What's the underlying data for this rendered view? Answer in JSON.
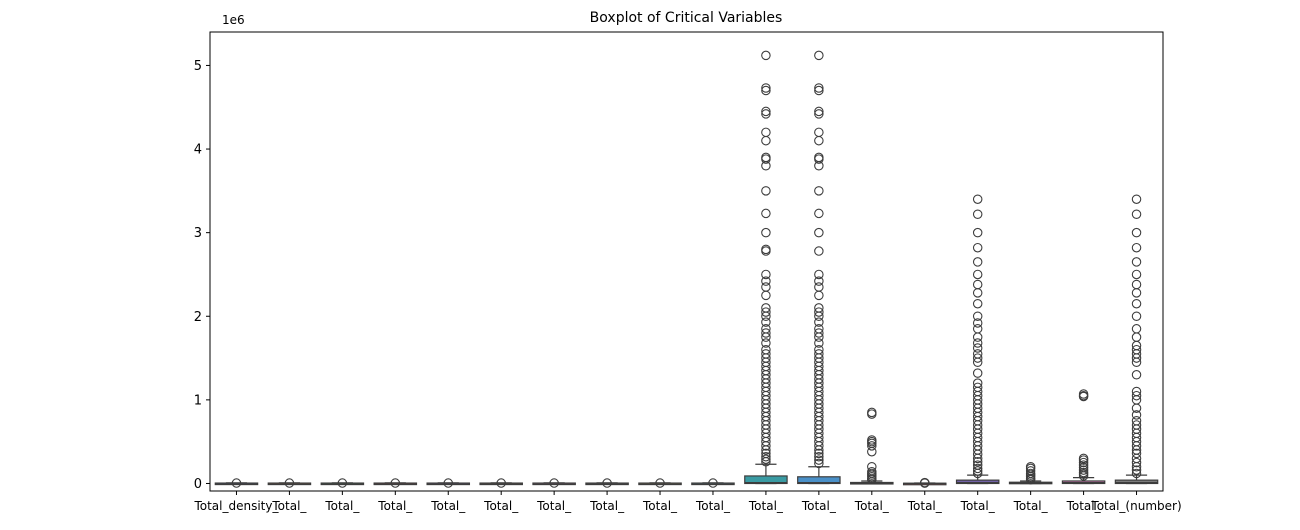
{
  "chart_data": {
    "type": "box",
    "title": "Boxplot of Critical Variables",
    "xlabel": "",
    "ylabel": "",
    "y_offset_label": "1e6",
    "ylim": [
      -0.09,
      5.4
    ],
    "y_ticks": [
      0,
      1,
      2,
      3,
      4,
      5
    ],
    "y_tick_labels": [
      "0",
      "1",
      "2",
      "3",
      "4",
      "5"
    ],
    "x_tick_labels": [
      "Total_density_",
      "Total_",
      "Total_",
      "Total_",
      "Total_",
      "Total_",
      "Total_",
      "Total_",
      "Total_",
      "Total_",
      "Total_",
      "Total_",
      "Total_",
      "Total_",
      "Total_",
      "Total_",
      "Total_",
      "Total_(number)"
    ],
    "boxes": [
      {
        "q1": 0,
        "median": 0.002,
        "q3": 0.005,
        "whisker_low": 0,
        "whisker_high": 0.008,
        "outliers": [
          0.005
        ]
      },
      {
        "q1": 0,
        "median": 0.002,
        "q3": 0.005,
        "whisker_low": 0,
        "whisker_high": 0.008,
        "outliers": [
          0.005
        ]
      },
      {
        "q1": 0,
        "median": 0.002,
        "q3": 0.005,
        "whisker_low": 0,
        "whisker_high": 0.008,
        "outliers": [
          0.005
        ]
      },
      {
        "q1": 0,
        "median": 0.002,
        "q3": 0.005,
        "whisker_low": 0,
        "whisker_high": 0.008,
        "outliers": [
          0.005
        ]
      },
      {
        "q1": 0,
        "median": 0.002,
        "q3": 0.005,
        "whisker_low": 0,
        "whisker_high": 0.008,
        "outliers": [
          0.005
        ]
      },
      {
        "q1": 0,
        "median": 0.002,
        "q3": 0.005,
        "whisker_low": 0,
        "whisker_high": 0.008,
        "outliers": [
          0.005
        ]
      },
      {
        "q1": 0,
        "median": 0.002,
        "q3": 0.005,
        "whisker_low": 0,
        "whisker_high": 0.008,
        "outliers": [
          0.005
        ]
      },
      {
        "q1": 0,
        "median": 0.002,
        "q3": 0.005,
        "whisker_low": 0,
        "whisker_high": 0.008,
        "outliers": [
          0.005
        ]
      },
      {
        "q1": 0,
        "median": 0.002,
        "q3": 0.005,
        "whisker_low": 0,
        "whisker_high": 0.008,
        "outliers": [
          0.005
        ]
      },
      {
        "q1": 0,
        "median": 0.002,
        "q3": 0.005,
        "whisker_low": 0,
        "whisker_high": 0.008,
        "outliers": [
          0.005
        ]
      },
      {
        "q1": 0,
        "median": 0.01,
        "q3": 0.09,
        "whisker_low": 0,
        "whisker_high": 0.23,
        "outliers": [
          5.12,
          4.73,
          4.7,
          4.45,
          4.42,
          4.2,
          4.1,
          3.9,
          3.88,
          3.8,
          3.5,
          3.23,
          3.0,
          2.8,
          2.78,
          2.5,
          2.42,
          2.35,
          2.25,
          2.1,
          2.05,
          2.0,
          1.93,
          1.85,
          1.8,
          1.75,
          1.68,
          1.6,
          1.55,
          1.5,
          1.45,
          1.4,
          1.35,
          1.3,
          1.25,
          1.2,
          1.15,
          1.1,
          1.05,
          1.0,
          0.95,
          0.9,
          0.85,
          0.8,
          0.75,
          0.7,
          0.65,
          0.6,
          0.55,
          0.5,
          0.45,
          0.4,
          0.36,
          0.32,
          0.29,
          0.26
        ]
      },
      {
        "q1": 0,
        "median": 0.01,
        "q3": 0.08,
        "whisker_low": 0,
        "whisker_high": 0.2,
        "outliers": [
          5.12,
          4.73,
          4.7,
          4.45,
          4.42,
          4.2,
          4.1,
          3.9,
          3.88,
          3.8,
          3.5,
          3.23,
          3.0,
          2.78,
          2.5,
          2.42,
          2.35,
          2.25,
          2.1,
          2.05,
          2.0,
          1.93,
          1.85,
          1.8,
          1.75,
          1.68,
          1.6,
          1.55,
          1.5,
          1.45,
          1.4,
          1.35,
          1.3,
          1.25,
          1.2,
          1.15,
          1.1,
          1.05,
          1.0,
          0.95,
          0.9,
          0.85,
          0.8,
          0.75,
          0.7,
          0.65,
          0.6,
          0.55,
          0.5,
          0.45,
          0.4,
          0.36,
          0.32,
          0.28,
          0.24
        ]
      },
      {
        "q1": 0,
        "median": 0.004,
        "q3": 0.012,
        "whisker_low": 0,
        "whisker_high": 0.03,
        "outliers": [
          0.85,
          0.83,
          0.52,
          0.5,
          0.48,
          0.45,
          0.38,
          0.2,
          0.14,
          0.12,
          0.1,
          0.08,
          0.06,
          0.045
        ]
      },
      {
        "q1": 0,
        "median": 0.001,
        "q3": 0.003,
        "whisker_low": 0,
        "whisker_high": 0.006,
        "outliers": [
          0.01,
          0.004
        ]
      },
      {
        "q1": 0,
        "median": 0.012,
        "q3": 0.04,
        "whisker_low": 0,
        "whisker_high": 0.1,
        "outliers": [
          3.4,
          3.22,
          3.0,
          2.82,
          2.65,
          2.5,
          2.38,
          2.28,
          2.15,
          2.0,
          1.92,
          1.85,
          1.75,
          1.68,
          1.62,
          1.55,
          1.5,
          1.45,
          1.32,
          1.2,
          1.15,
          1.1,
          1.05,
          1.0,
          0.95,
          0.9,
          0.85,
          0.8,
          0.75,
          0.7,
          0.65,
          0.6,
          0.55,
          0.5,
          0.45,
          0.4,
          0.35,
          0.3,
          0.26,
          0.22,
          0.18,
          0.15,
          0.12
        ]
      },
      {
        "q1": 0,
        "median": 0.004,
        "q3": 0.015,
        "whisker_low": 0,
        "whisker_high": 0.03,
        "outliers": [
          0.2,
          0.18,
          0.15,
          0.12,
          0.1,
          0.08,
          0.06,
          0.045
        ]
      },
      {
        "q1": 0,
        "median": 0.01,
        "q3": 0.03,
        "whisker_low": 0,
        "whisker_high": 0.07,
        "outliers": [
          1.07,
          1.05,
          1.04,
          0.3,
          0.28,
          0.25,
          0.22,
          0.19,
          0.16,
          0.13,
          0.11,
          0.09
        ]
      },
      {
        "q1": 0,
        "median": 0.012,
        "q3": 0.04,
        "whisker_low": 0,
        "whisker_high": 0.1,
        "outliers": [
          3.4,
          3.22,
          3.0,
          2.82,
          2.65,
          2.5,
          2.38,
          2.28,
          2.15,
          2.0,
          1.85,
          1.75,
          1.65,
          1.6,
          1.55,
          1.5,
          1.45,
          1.3,
          1.1,
          1.05,
          1.0,
          0.9,
          0.82,
          0.75,
          0.7,
          0.65,
          0.6,
          0.55,
          0.5,
          0.45,
          0.4,
          0.36,
          0.3,
          0.25,
          0.2,
          0.16,
          0.12
        ]
      }
    ],
    "box_colors": [
      "#4c72b0",
      "#dd8452",
      "#55a868",
      "#c44e52",
      "#8172b3",
      "#937860",
      "#da8bc3",
      "#8c8c8c",
      "#ccb974",
      "#64b5cd",
      "#3a9ba3",
      "#4a90c8",
      "#3d9e69",
      "#b45c5c",
      "#7a67b5",
      "#8a6d50",
      "#d27ab8",
      "#858585"
    ],
    "outlier_edge_color": "#3d3d3d",
    "axis_color": "#000000",
    "grid": false,
    "legend": "none"
  }
}
